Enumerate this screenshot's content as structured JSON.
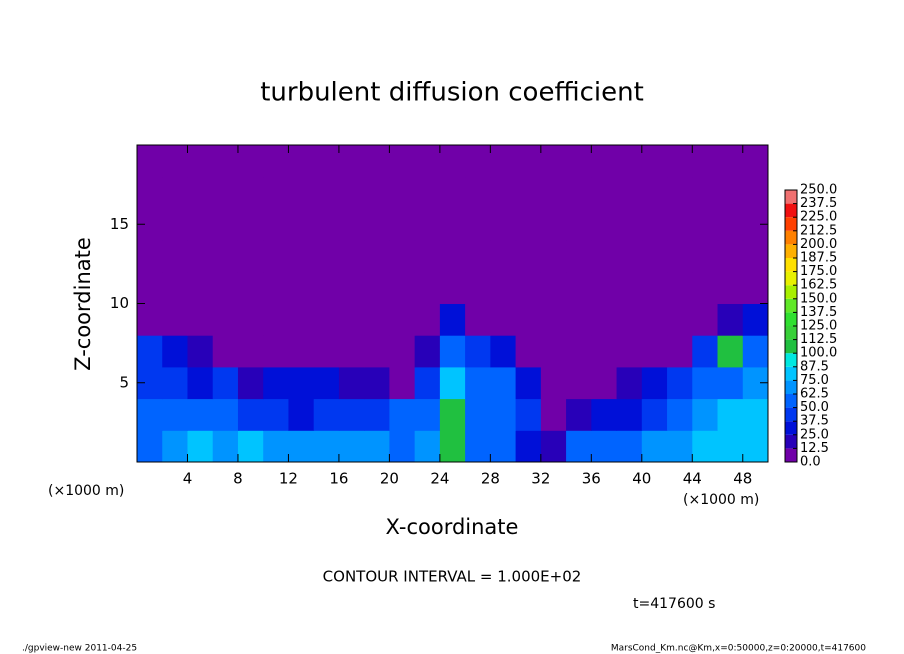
{
  "chart_data": {
    "type": "heatmap",
    "title": "turbulent diffusion coefficient",
    "x_label": "X-coordinate",
    "y_label": "Z-coordinate",
    "x_unit_left": "(×1000 m)",
    "x_unit_right": "(×1000 m)",
    "contour_note": "CONTOUR INTERVAL = 1.000E+02",
    "time_note": "t=417600 s",
    "footer_left": "./gpview-new  2011-04-25",
    "footer_right": "MarsCond_Km.nc@Km,x=0:50000,z=0:20000,t=417600",
    "xlim": [
      0,
      50
    ],
    "ylim": [
      0,
      20
    ],
    "xticks": [
      4,
      8,
      12,
      16,
      20,
      24,
      28,
      32,
      36,
      40,
      44,
      48
    ],
    "yticks": [
      5,
      10,
      15
    ],
    "x": [
      1,
      3,
      5,
      7,
      9,
      11,
      13,
      15,
      17,
      19,
      21,
      23,
      25,
      27,
      29,
      31,
      33,
      35,
      37,
      39,
      41,
      43,
      45,
      47,
      49
    ],
    "z": [
      1,
      3,
      5,
      7,
      9,
      11,
      13,
      15,
      17,
      19
    ],
    "cell_size": 2,
    "values": [
      [
        60,
        70,
        75,
        70,
        75,
        70,
        65,
        70,
        65,
        70,
        60,
        70,
        110,
        60,
        50,
        30,
        20,
        50,
        60,
        60,
        70,
        70,
        75,
        80,
        80
      ],
      [
        55,
        60,
        50,
        55,
        40,
        45,
        35,
        45,
        40,
        40,
        50,
        60,
        110,
        55,
        55,
        40,
        10,
        20,
        30,
        30,
        45,
        55,
        70,
        75,
        80
      ],
      [
        45,
        40,
        30,
        40,
        20,
        25,
        25,
        30,
        20,
        15,
        10,
        40,
        75,
        55,
        50,
        35,
        10,
        10,
        5,
        15,
        30,
        40,
        50,
        60,
        70
      ],
      [
        40,
        30,
        15,
        5,
        0,
        0,
        0,
        0,
        0,
        0,
        0,
        20,
        60,
        40,
        30,
        0,
        0,
        0,
        0,
        0,
        0,
        5,
        40,
        110,
        60
      ],
      [
        10,
        0,
        0,
        0,
        0,
        0,
        0,
        0,
        0,
        0,
        0,
        0,
        35,
        10,
        0,
        0,
        0,
        0,
        0,
        0,
        0,
        0,
        0,
        20,
        30
      ],
      [
        0,
        0,
        0,
        0,
        0,
        0,
        0,
        0,
        0,
        0,
        0,
        0,
        0,
        0,
        0,
        0,
        0,
        0,
        0,
        0,
        0,
        0,
        0,
        0,
        0
      ],
      [
        0,
        0,
        0,
        0,
        0,
        0,
        0,
        0,
        0,
        0,
        0,
        0,
        0,
        0,
        0,
        0,
        0,
        0,
        0,
        0,
        0,
        0,
        0,
        0,
        0
      ],
      [
        0,
        0,
        0,
        0,
        0,
        0,
        0,
        0,
        0,
        0,
        0,
        0,
        0,
        0,
        0,
        0,
        0,
        0,
        0,
        0,
        0,
        0,
        0,
        0,
        0
      ],
      [
        0,
        0,
        0,
        0,
        0,
        0,
        0,
        0,
        0,
        0,
        0,
        0,
        0,
        0,
        0,
        0,
        0,
        0,
        0,
        0,
        0,
        0,
        0,
        0,
        0
      ],
      [
        0,
        0,
        0,
        0,
        0,
        0,
        0,
        0,
        0,
        0,
        0,
        0,
        0,
        0,
        0,
        0,
        0,
        0,
        0,
        0,
        0,
        0,
        0,
        0,
        0
      ]
    ],
    "colorbar": {
      "ticks": [
        {
          "value": 0,
          "label": "0.0"
        },
        12.5,
        {
          "value": 25,
          "label": "25.0"
        },
        37.5,
        {
          "value": 50,
          "label": "50.0"
        },
        62.5,
        {
          "value": 75,
          "label": "75.0"
        },
        87.5,
        {
          "value": 100,
          "label": "100.0"
        },
        112.5,
        {
          "value": 125,
          "label": "125.0"
        },
        137.5,
        {
          "value": 150,
          "label": "150.0"
        },
        162.5,
        {
          "value": 175,
          "label": "175.0"
        },
        187.5,
        {
          "value": 200,
          "label": "200.0"
        },
        212.5,
        {
          "value": 225,
          "label": "225.0"
        },
        237.5,
        {
          "value": 250,
          "label": "250.0"
        }
      ],
      "colors": [
        "#7000a8",
        "#2800b8",
        "#0010d8",
        "#0038f0",
        "#0064ff",
        "#0094ff",
        "#00c4ff",
        "#00e8e0",
        "#20c040",
        "#38d038",
        "#30e030",
        "#60e828",
        "#a8f000",
        "#e8f000",
        "#ffe000",
        "#ffb000",
        "#ff8000",
        "#ff4000",
        "#f01010",
        "#f07070"
      ]
    }
  }
}
